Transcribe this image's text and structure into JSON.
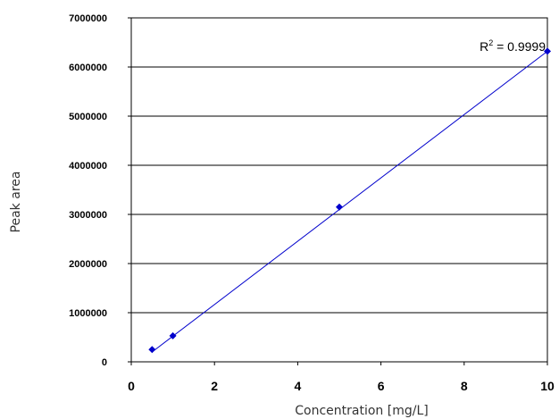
{
  "chart_data": {
    "type": "scatter",
    "title": "",
    "xlabel": "Concentration [mg/L]",
    "ylabel": "Peak area",
    "xlim": [
      0,
      10
    ],
    "ylim": [
      0,
      7000000
    ],
    "xticks": [
      "0",
      "2",
      "4",
      "6",
      "8",
      "10"
    ],
    "yticks": [
      "0",
      "1000000",
      "2000000",
      "3000000",
      "4000000",
      "5000000",
      "6000000",
      "7000000"
    ],
    "grid": "horizontal",
    "legend": "none",
    "annotation": {
      "base": "R",
      "sup": "2",
      "rest": " = 0.9999"
    },
    "series": [
      {
        "points": [
          {
            "x": 0.5,
            "y": 250000
          },
          {
            "x": 1.0,
            "y": 530000
          },
          {
            "x": 5.0,
            "y": 3150000
          },
          {
            "x": 10.0,
            "y": 6320000
          }
        ],
        "color": "#0000cc",
        "marker": "diamond",
        "trendline": {
          "type": "linear",
          "from": [
            0.5,
            200000
          ],
          "to": [
            10.0,
            6320000
          ]
        }
      }
    ]
  }
}
